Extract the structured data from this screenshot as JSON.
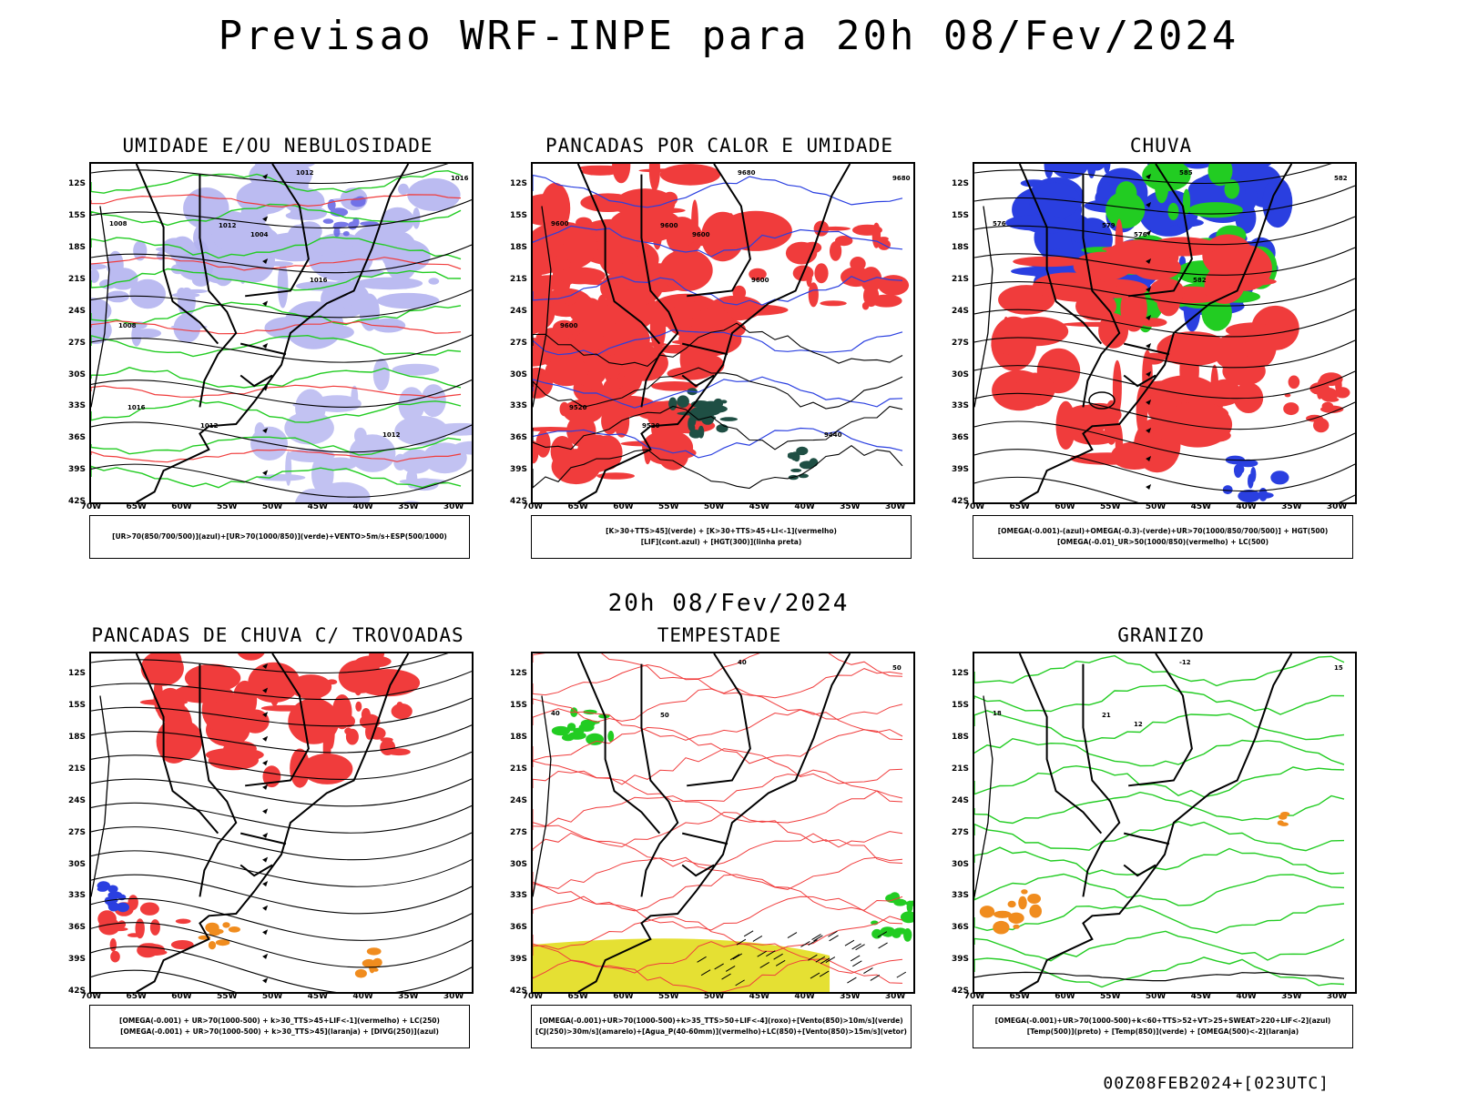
{
  "title": "Previsao WRF-INPE  para 20h 08/Fev/2024",
  "middle_title": "20h 08/Fev/2024",
  "footer": "00Z08FEB2024+[023UTC]",
  "latitude_labels": [
    "12S",
    "15S",
    "18S",
    "21S",
    "24S",
    "27S",
    "30S",
    "33S",
    "36S",
    "39S",
    "42S"
  ],
  "longitude_labels": [
    "70W",
    "65W",
    "60W",
    "55W",
    "50W",
    "45W",
    "40W",
    "35W",
    "30W"
  ],
  "colors": {
    "red": "#f03c3c",
    "green": "#22cc22",
    "blue": "#2a3fe0",
    "lavender": "#b4b4f0",
    "yellow": "#e5e033",
    "orange": "#f08c1e",
    "darkteal": "#1f4f44"
  },
  "panels": [
    {
      "title": "UMIDADE E/OU NEBULOSIDADE",
      "legend": [
        "[UR>70(850/700/500)](azul)+[UR>70(1000/850)](verde)+VENTO>5m/s+ESP(500/1000)"
      ],
      "contour_labels": [
        "1012",
        "1016",
        "1008",
        "1012",
        "1004",
        "1016",
        "1008",
        "1016",
        "1012",
        "1012"
      ],
      "icons": [
        "isobar-contour-icon",
        "wind-arrow-icon"
      ]
    },
    {
      "title": "PANCADAS POR CALOR E UMIDADE",
      "legend": [
        "[K>30+TTS>45](verde) + [K>30+TTS>45+LI<-1](vermelho)",
        "[LIF](cont.azul) + [HGT(300)](linha preta)"
      ],
      "contour_labels": [
        "9680",
        "9680",
        "9600",
        "9600",
        "9600",
        "9600",
        "9600",
        "9520",
        "9520",
        "9440"
      ],
      "icons": [
        "geopotential-contour-icon"
      ]
    },
    {
      "title": "CHUVA",
      "legend": [
        "[OMEGA(-0.001)-(azul)+OMEGA(-0.3)-(verde)+UR>70(1000/850/700/500)] + HGT(500)",
        "[OMEGA(-0.01)_UR>50(1000/850)(vermelho) + LC(500)"
      ],
      "contour_labels": [
        "585",
        "582",
        "576",
        "579",
        "576",
        "582"
      ],
      "icons": [
        "streamline-icon"
      ]
    },
    {
      "title": "PANCADAS DE CHUVA C/ TROVOADAS",
      "legend": [
        "[OMEGA(-0.001) + UR>70(1000-500) + k>30_TTS>45+LIF<-1](vermelho) + LC(250)",
        "[OMEGA(-0.001) + UR>70(1000-500) + k>30_TTS>45](laranja) + [DIVG(250)](azul)"
      ],
      "contour_labels": [],
      "icons": [
        "streamline-icon"
      ]
    },
    {
      "title": "TEMPESTADE",
      "legend": [
        "[OMEGA(-0.001)+UR>70(1000-500)+k>35_TTS>50+LIF<-4](roxo)+[Vento(850)>10m/s](verde)",
        "[CJ(250)>30m/s](amarelo)+[Agua_P(40-60mm)](vermelho)+LC(850)+[Vento(850)>15m/s](vetor)"
      ],
      "contour_labels": [
        "40",
        "50",
        "40",
        "50"
      ],
      "icons": [
        "wind-vector-icon"
      ]
    },
    {
      "title": "GRANIZO",
      "legend": [
        "[OMEGA(-0.001)+UR>70(1000-500)+k<60+TTS>52+VT>25+SWEAT>220+LIF<-2](azul)",
        "[Temp(500)](preto) + [Temp(850)](verde) + [OMEGA(500)<-2](laranja)"
      ],
      "contour_labels": [
        "-12",
        "15",
        "18",
        "21",
        "12"
      ],
      "icons": [
        "temperature-contour-icon"
      ]
    }
  ]
}
